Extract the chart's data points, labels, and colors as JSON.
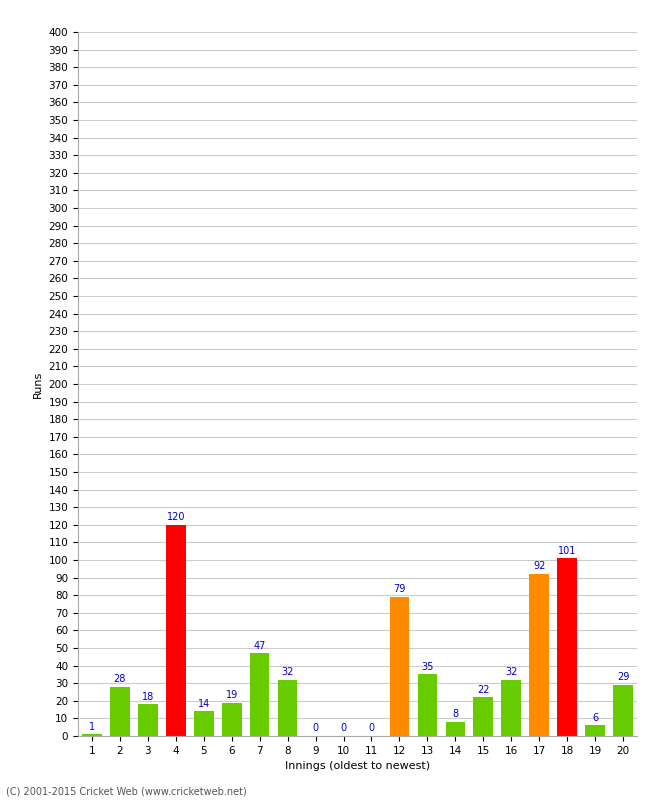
{
  "innings": [
    1,
    2,
    3,
    4,
    5,
    6,
    7,
    8,
    9,
    10,
    11,
    12,
    13,
    14,
    15,
    16,
    17,
    18,
    19,
    20
  ],
  "values": [
    1,
    28,
    18,
    120,
    14,
    19,
    47,
    32,
    0,
    0,
    0,
    79,
    35,
    8,
    22,
    32,
    92,
    101,
    6,
    29
  ],
  "colors": [
    "#66cc00",
    "#66cc00",
    "#66cc00",
    "#ff0000",
    "#66cc00",
    "#66cc00",
    "#66cc00",
    "#66cc00",
    "#66cc00",
    "#66cc00",
    "#66cc00",
    "#ff8c00",
    "#66cc00",
    "#66cc00",
    "#66cc00",
    "#66cc00",
    "#ff8c00",
    "#ff0000",
    "#66cc00",
    "#66cc00"
  ],
  "xlabel": "Innings (oldest to newest)",
  "ylabel": "Runs",
  "ylim": [
    0,
    400
  ],
  "ytick_step": 10,
  "background_color": "#ffffff",
  "grid_color": "#cccccc",
  "label_color": "#0000cc",
  "label_fontsize": 7,
  "axis_fontsize": 7.5,
  "footer": "(C) 2001-2015 Cricket Web (www.cricketweb.net)",
  "footer_fontsize": 7,
  "xlabel_fontsize": 8,
  "ylabel_fontsize": 8
}
